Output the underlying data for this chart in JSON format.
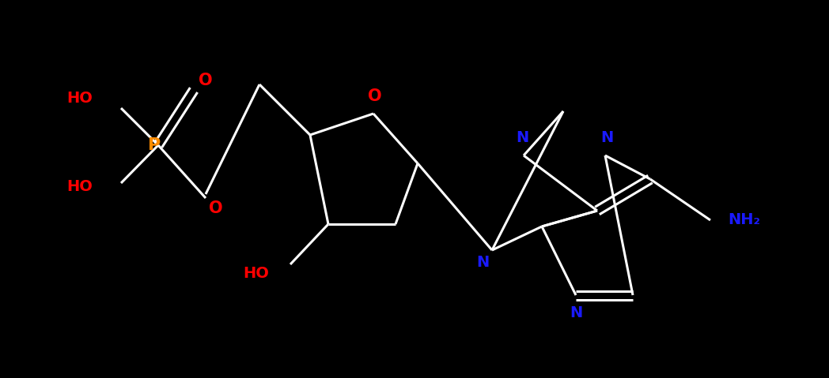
{
  "bg_color": "#000000",
  "bond_color": "#ffffff",
  "bond_lw": 2.2,
  "atom_colors": {
    "O": "#ff0000",
    "P": "#ff8c00",
    "N": "#1a1aff",
    "NH2": "#1a1aff",
    "HO": "#ff0000"
  },
  "figsize": [
    10.48,
    4.79
  ],
  "dpi": 100,
  "double_sep": 0.055
}
